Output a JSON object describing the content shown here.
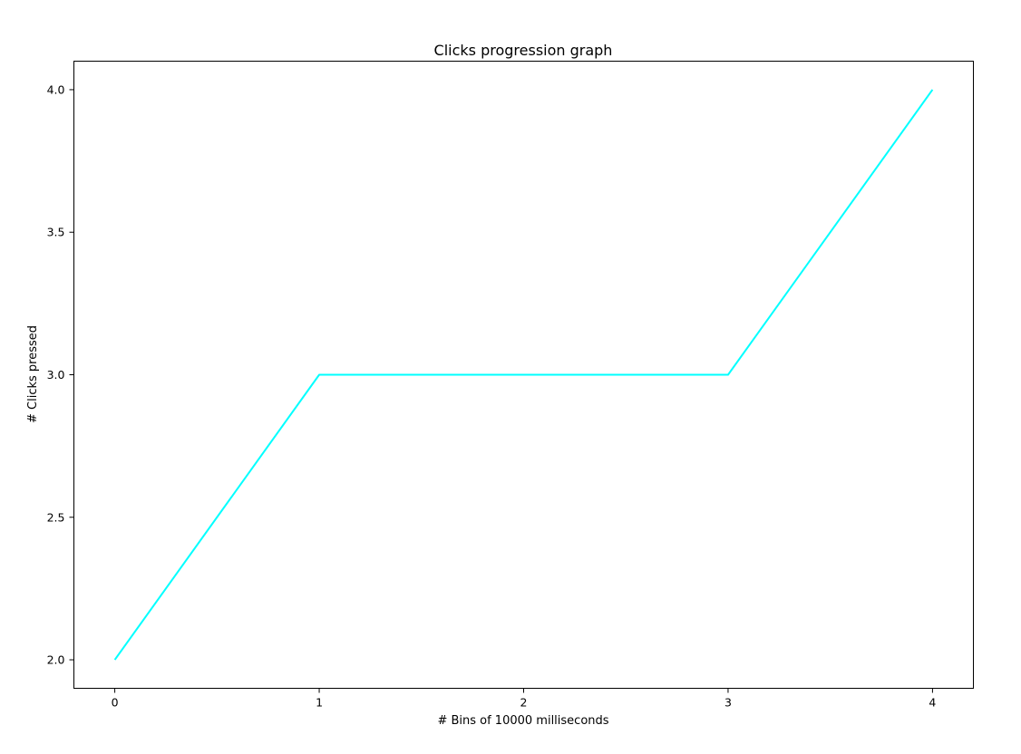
{
  "chart_data": {
    "type": "line",
    "title": "Clicks progression graph",
    "xlabel": "# Bins of 10000 milliseconds",
    "ylabel": "# Clicks pressed",
    "x": [
      0,
      1,
      2,
      3,
      4
    ],
    "series": [
      {
        "values": [
          2,
          3,
          3,
          3,
          4
        ],
        "color": "#00ffff"
      }
    ],
    "xlim": [
      -0.2,
      4.2
    ],
    "ylim": [
      1.9,
      4.1
    ],
    "xticks": [
      "0",
      "1",
      "2",
      "3",
      "4"
    ],
    "yticks": [
      "2.0",
      "2.5",
      "3.0",
      "3.5",
      "4.0"
    ],
    "grid": false,
    "legend": false
  }
}
